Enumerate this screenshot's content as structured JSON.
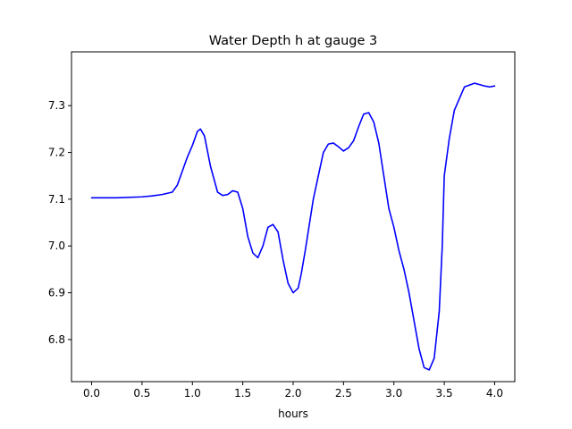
{
  "chart_data": {
    "type": "line",
    "title": "Water Depth h at gauge 3",
    "xlabel": "hours",
    "ylabel": "",
    "xlim": [
      -0.2,
      4.2
    ],
    "ylim": [
      6.71,
      7.415
    ],
    "xticks": [
      0.0,
      0.5,
      1.0,
      1.5,
      2.0,
      2.5,
      3.0,
      3.5,
      4.0
    ],
    "xtick_labels": [
      "0.0",
      "0.5",
      "1.0",
      "1.5",
      "2.0",
      "2.5",
      "3.0",
      "3.5",
      "4.0"
    ],
    "yticks": [
      6.8,
      6.9,
      7.0,
      7.1,
      7.2,
      7.3
    ],
    "ytick_labels": [
      "6.8",
      "6.9",
      "7.0",
      "7.1",
      "7.2",
      "7.3"
    ],
    "grid": false,
    "series": [
      {
        "color": "#0000ff",
        "x": [
          0.0,
          0.25,
          0.5,
          0.6,
          0.7,
          0.8,
          0.85,
          0.9,
          0.95,
          1.0,
          1.05,
          1.08,
          1.12,
          1.18,
          1.25,
          1.3,
          1.35,
          1.4,
          1.45,
          1.5,
          1.55,
          1.6,
          1.65,
          1.7,
          1.75,
          1.8,
          1.85,
          1.9,
          1.95,
          2.0,
          2.05,
          2.08,
          2.12,
          2.2,
          2.3,
          2.35,
          2.4,
          2.45,
          2.5,
          2.55,
          2.6,
          2.65,
          2.7,
          2.75,
          2.8,
          2.85,
          2.9,
          2.95,
          3.0,
          3.05,
          3.1,
          3.15,
          3.2,
          3.25,
          3.3,
          3.35,
          3.4,
          3.45,
          3.48,
          3.5,
          3.55,
          3.6,
          3.7,
          3.8,
          3.85,
          3.9,
          3.95,
          4.0
        ],
        "y": [
          7.103,
          7.103,
          7.105,
          7.107,
          7.11,
          7.115,
          7.13,
          7.16,
          7.19,
          7.215,
          7.245,
          7.25,
          7.235,
          7.17,
          7.115,
          7.108,
          7.11,
          7.118,
          7.115,
          7.08,
          7.02,
          6.985,
          6.975,
          7.0,
          7.04,
          7.046,
          7.03,
          6.97,
          6.92,
          6.9,
          6.91,
          6.94,
          6.99,
          7.1,
          7.2,
          7.218,
          7.22,
          7.212,
          7.203,
          7.21,
          7.225,
          7.255,
          7.282,
          7.285,
          7.265,
          7.22,
          7.15,
          7.08,
          7.04,
          6.99,
          6.95,
          6.9,
          6.84,
          6.78,
          6.74,
          6.735,
          6.76,
          6.86,
          7.0,
          7.15,
          7.23,
          7.29,
          7.34,
          7.348,
          7.345,
          7.342,
          7.34,
          7.342
        ]
      }
    ]
  }
}
